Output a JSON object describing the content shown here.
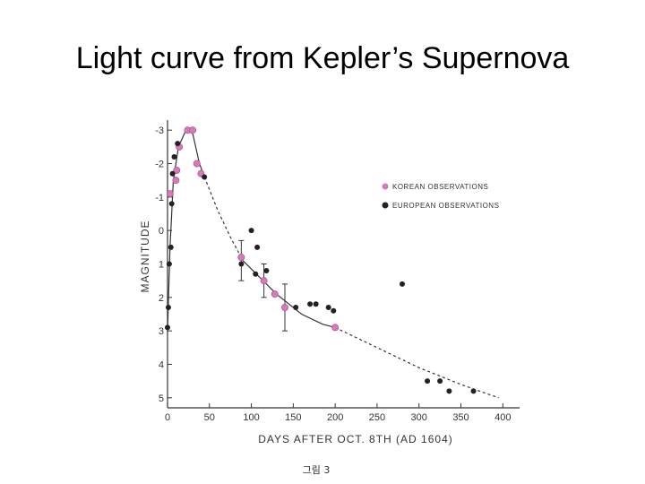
{
  "slide": {
    "title": "Light curve from Kepler’s Supernova"
  },
  "chart_data": {
    "type": "scatter",
    "xlabel": "DAYS AFTER OCT. 8TH (AD 1604)",
    "ylabel": "MAGNITUDE",
    "caption": "그림 3",
    "xlim": [
      0,
      420
    ],
    "ylim": [
      5.3,
      -3.3
    ],
    "y_inverted": true,
    "grid": false,
    "legend_position": "top-right",
    "x_ticks": [
      0,
      50,
      100,
      150,
      200,
      250,
      300,
      350,
      400
    ],
    "x_tick_labels": [
      "0",
      "50",
      "100",
      "150",
      "200",
      "250",
      "300",
      "350",
      "400"
    ],
    "y_ticks": [
      -3,
      -2,
      -1,
      0,
      1,
      2,
      3,
      4,
      5
    ],
    "y_tick_labels": [
      "-3",
      "-2",
      "-1",
      "0",
      "1",
      "2",
      "3",
      "4",
      "5"
    ],
    "series": [
      {
        "name": "KOREAN OBSERVATIONS",
        "color": "#d67ab8",
        "points": [
          [
            3,
            -1.1
          ],
          [
            10,
            -1.5
          ],
          [
            11,
            -1.8
          ],
          [
            14,
            -2.5
          ],
          [
            24,
            -3.0
          ],
          [
            30,
            -3.0
          ],
          [
            35,
            -2.0
          ],
          [
            40,
            -1.7
          ],
          [
            88,
            0.8
          ],
          [
            115,
            1.5
          ],
          [
            128,
            1.9
          ],
          [
            140,
            2.3
          ],
          [
            200,
            2.9
          ]
        ],
        "error_bars": [
          [
            88,
            0.3,
            1.5
          ],
          [
            115,
            1.0,
            2.0
          ],
          [
            140,
            1.6,
            3.0
          ]
        ]
      },
      {
        "name": "EUROPEAN OBSERVATIONS",
        "color": "#222222",
        "points": [
          [
            0,
            2.9
          ],
          [
            1,
            2.3
          ],
          [
            2,
            1.0
          ],
          [
            4,
            0.5
          ],
          [
            5,
            -0.8
          ],
          [
            6,
            -1.7
          ],
          [
            8,
            -2.2
          ],
          [
            12,
            -2.6
          ],
          [
            44,
            -1.6
          ],
          [
            88,
            1.0
          ],
          [
            100,
            0.0
          ],
          [
            105,
            1.3
          ],
          [
            107,
            0.5
          ],
          [
            118,
            1.2
          ],
          [
            153,
            2.3
          ],
          [
            170,
            2.2
          ],
          [
            177,
            2.2
          ],
          [
            192,
            2.3
          ],
          [
            198,
            2.4
          ],
          [
            280,
            1.6
          ],
          [
            310,
            4.5
          ],
          [
            325,
            4.5
          ],
          [
            336,
            4.8
          ],
          [
            365,
            4.8
          ]
        ]
      }
    ],
    "curve": {
      "solid_1": [
        [
          0,
          3.0
        ],
        [
          3,
          0.5
        ],
        [
          7,
          -1.5
        ],
        [
          13,
          -2.5
        ],
        [
          22,
          -3.0
        ],
        [
          30,
          -2.9
        ],
        [
          38,
          -2.0
        ],
        [
          44,
          -1.6
        ]
      ],
      "dashed_1": [
        [
          44,
          -1.6
        ],
        [
          60,
          -0.6
        ],
        [
          75,
          0.2
        ],
        [
          90,
          0.9
        ]
      ],
      "solid_2": [
        [
          90,
          0.9
        ],
        [
          110,
          1.4
        ],
        [
          130,
          1.9
        ],
        [
          160,
          2.5
        ],
        [
          185,
          2.8
        ],
        [
          200,
          2.9
        ]
      ],
      "dashed_2": [
        [
          200,
          2.9
        ],
        [
          250,
          3.5
        ],
        [
          300,
          4.1
        ],
        [
          350,
          4.6
        ],
        [
          395,
          5.0
        ]
      ]
    }
  }
}
